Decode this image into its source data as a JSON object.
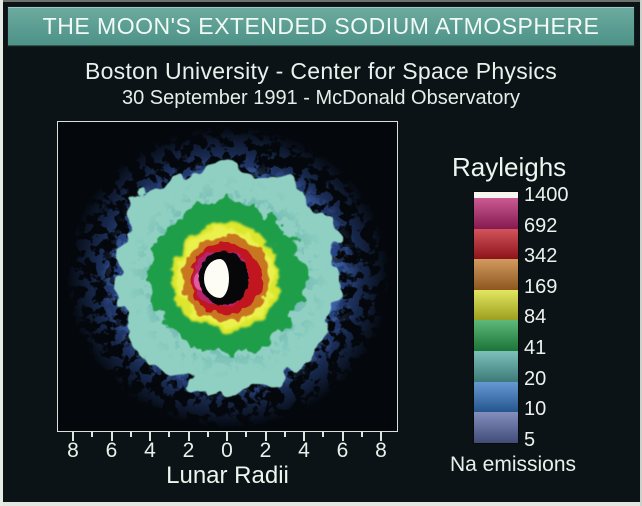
{
  "page": {
    "title": "THE MOON'S EXTENDED SODIUM ATMOSPHERE",
    "subtitle": "Boston University - Center for Space Physics",
    "dateline": "30 September 1991 - McDonald Observatory",
    "colors": {
      "title_bar_bg": "#55988e",
      "page_bg": "#0c1317",
      "text": "#eef3ee"
    }
  },
  "axis": {
    "x_ticks": [
      "8",
      "6",
      "4",
      "2",
      "0",
      "2",
      "4",
      "6",
      "8"
    ],
    "xlabel": "Lunar Radii"
  },
  "colorbar": {
    "title": "Rayleighs",
    "footer": "Na emissions",
    "levels": [
      {
        "value": "1400",
        "color": "#f7f5ef"
      },
      {
        "value": "692",
        "color": "#b8246e"
      },
      {
        "value": "342",
        "color": "#c31a24"
      },
      {
        "value": "169",
        "color": "#c2782a"
      },
      {
        "value": "84",
        "color": "#d9dd2b"
      },
      {
        "value": "41",
        "color": "#27a14d"
      },
      {
        "value": "20",
        "color": "#53aaa5"
      },
      {
        "value": "10",
        "color": "#3377c5"
      },
      {
        "value": "5",
        "color": "#5b69a7"
      }
    ]
  },
  "chart_data": {
    "type": "heatmap",
    "title": "THE MOON'S EXTENDED SODIUM ATMOSPHERE",
    "subtitle": "Boston University - Center for Space Physics",
    "caption": "30 September 1991 - McDonald Observatory",
    "xlabel": "Lunar Radii",
    "x_tick_labels": [
      "8",
      "6",
      "4",
      "2",
      "0",
      "2",
      "4",
      "6",
      "8"
    ],
    "x_range_lunar_radii": [
      -9,
      9
    ],
    "colorbar_title": "Rayleighs",
    "colorbar_units": "Na emissions",
    "color_scale": [
      {
        "brightness_rayleighs": 1400,
        "color": "#f7f5ef"
      },
      {
        "brightness_rayleighs": 692,
        "color": "#b8246e"
      },
      {
        "brightness_rayleighs": 342,
        "color": "#c31a24"
      },
      {
        "brightness_rayleighs": 169,
        "color": "#c2782a"
      },
      {
        "brightness_rayleighs": 84,
        "color": "#d9dd2b"
      },
      {
        "brightness_rayleighs": 41,
        "color": "#27a14d"
      },
      {
        "brightness_rayleighs": 20,
        "color": "#53aaa5"
      },
      {
        "brightness_rayleighs": 10,
        "color": "#3377c5"
      },
      {
        "brightness_rayleighs": 5,
        "color": "#5b69a7"
      }
    ],
    "radial_profile": [
      {
        "region": "sunlit lunar crescent",
        "outer_radius_lunar_radii": 0.9,
        "brightness_rayleighs": "saturated (>1400)"
      },
      {
        "region": "unlit lunar disk",
        "outer_radius_lunar_radii": 1.3,
        "brightness_rayleighs": "dark"
      },
      {
        "region": "magenta zone",
        "outer_radius_lunar_radii": 1.5,
        "brightness_rayleighs": "692-1400"
      },
      {
        "region": "red zone",
        "outer_radius_lunar_radii": 1.9,
        "brightness_rayleighs": "342-692"
      },
      {
        "region": "orange zone",
        "outer_radius_lunar_radii": 2.3,
        "brightness_rayleighs": "169-342"
      },
      {
        "region": "yellow zone",
        "outer_radius_lunar_radii": 2.8,
        "brightness_rayleighs": "84-169"
      },
      {
        "region": "green zone",
        "outer_radius_lunar_radii": 4.0,
        "brightness_rayleighs": "41-84"
      },
      {
        "region": "teal zone",
        "outer_radius_lunar_radii": 5.9,
        "brightness_rayleighs": "20-41"
      },
      {
        "region": "blue speckle zone",
        "outer_radius_lunar_radii": 8.5,
        "brightness_rayleighs": "5-20"
      }
    ]
  }
}
